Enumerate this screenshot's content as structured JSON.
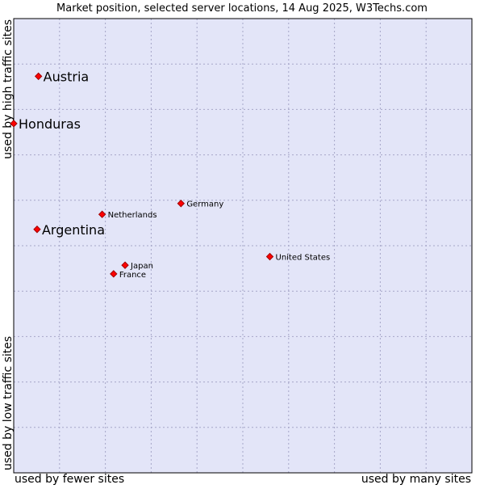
{
  "chart_data": {
    "type": "scatter",
    "title": "Market position, selected server locations, 14 Aug 2025, W3Techs.com",
    "xlabel_left": "used by fewer sites",
    "xlabel_right": "used by many sites",
    "ylabel_top": "used by high traffic sites",
    "ylabel_bottom": "used by low traffic sites",
    "xlim": [
      0,
      100
    ],
    "ylim": [
      0,
      100
    ],
    "grid": true,
    "colors": {
      "plot_background": "#e3e5f8",
      "marker": "#ff0000",
      "marker_edge": "#a00000",
      "frame": "#000000"
    },
    "points": [
      {
        "label": "Austria",
        "x": 5.4,
        "y": 87.3,
        "highlight": true
      },
      {
        "label": "Honduras",
        "x": 0.0,
        "y": 76.9,
        "highlight": true
      },
      {
        "label": "Germany",
        "x": 36.5,
        "y": 59.3,
        "highlight": false
      },
      {
        "label": "Netherlands",
        "x": 19.3,
        "y": 56.9,
        "highlight": false
      },
      {
        "label": "Argentina",
        "x": 5.1,
        "y": 53.6,
        "highlight": true
      },
      {
        "label": "United States",
        "x": 55.9,
        "y": 47.6,
        "highlight": false
      },
      {
        "label": "Japan",
        "x": 24.3,
        "y": 45.7,
        "highlight": false
      },
      {
        "label": "France",
        "x": 21.8,
        "y": 43.8,
        "highlight": false
      }
    ]
  }
}
